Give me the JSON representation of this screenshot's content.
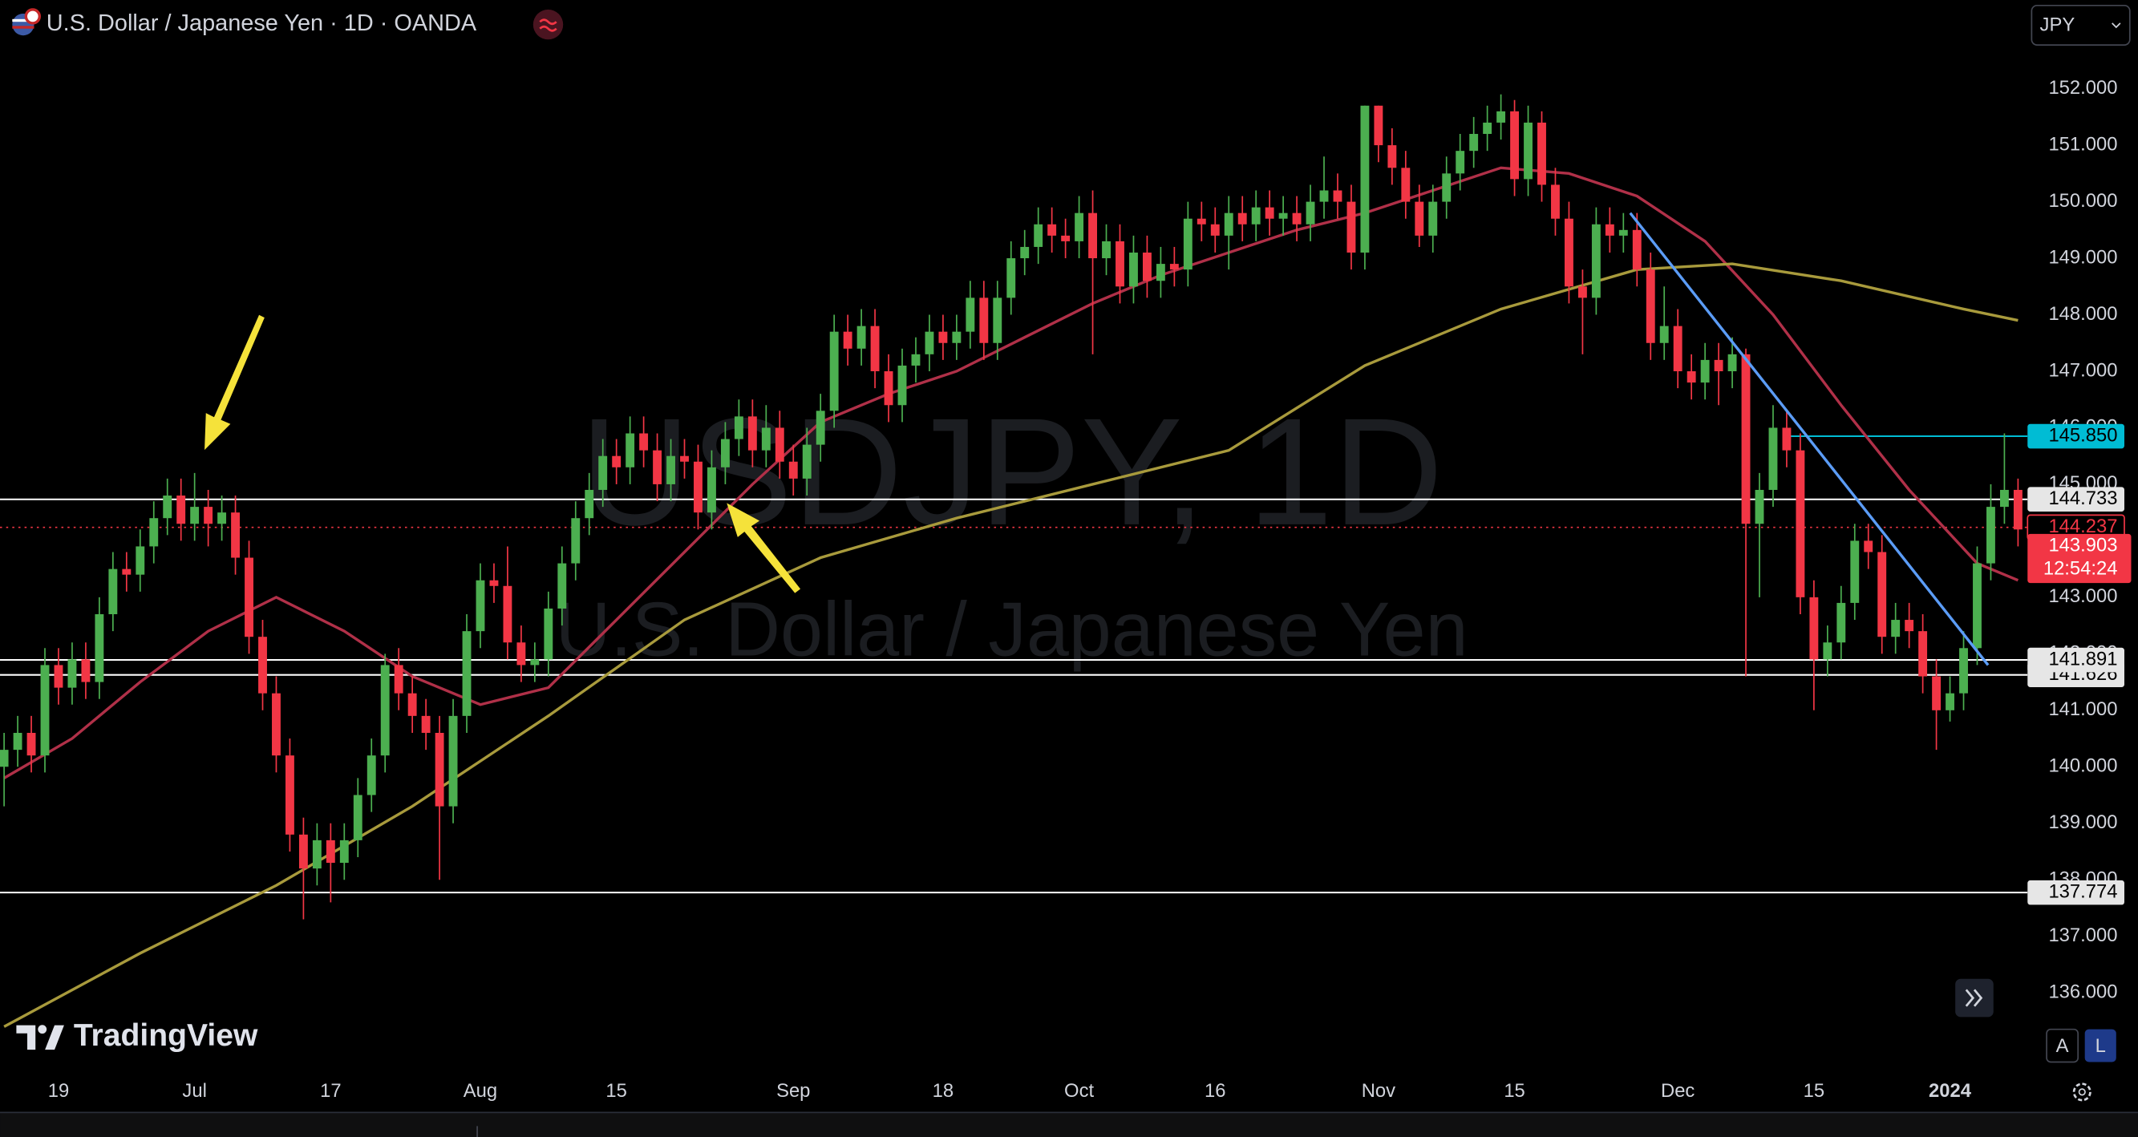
{
  "chart_data": {
    "type": "candlestick",
    "title": "U.S. Dollar / Japanese Yen · 1D · OANDA",
    "watermark_symbol": "USDJPY, 1D",
    "watermark_name": "U.S. Dollar / Japanese Yen",
    "up_color": "#4caf50",
    "down_color": "#f23645",
    "grid": false,
    "xlim": [
      -0.3,
      148.7
    ],
    "ylim": [
      134.63,
      153.57
    ],
    "yticks": [
      {
        "value": 136,
        "label": "136.000"
      },
      {
        "value": 137,
        "label": "137.000"
      },
      {
        "value": 138,
        "label": "138.000"
      },
      {
        "value": 139,
        "label": "139.000"
      },
      {
        "value": 140,
        "label": "140.000"
      },
      {
        "value": 141,
        "label": "141.000"
      },
      {
        "value": 142,
        "label": "142.000"
      },
      {
        "value": 143,
        "label": "143.000"
      },
      {
        "value": 144,
        "label": "144.000"
      },
      {
        "value": 145,
        "label": "145.000"
      },
      {
        "value": 146,
        "label": "146.000"
      },
      {
        "value": 147,
        "label": "147.000"
      },
      {
        "value": 148,
        "label": "148.000"
      },
      {
        "value": 149,
        "label": "149.000"
      },
      {
        "value": 150,
        "label": "150.000"
      },
      {
        "value": 151,
        "label": "151.000"
      },
      {
        "value": 152,
        "label": "152.000"
      }
    ],
    "categories": [
      null,
      null,
      null,
      null,
      "19",
      null,
      null,
      null,
      null,
      null,
      null,
      null,
      null,
      null,
      "Jul",
      null,
      null,
      null,
      null,
      null,
      null,
      null,
      null,
      null,
      "17",
      null,
      null,
      null,
      null,
      null,
      null,
      null,
      null,
      null,
      null,
      "Aug",
      null,
      null,
      null,
      null,
      null,
      null,
      null,
      null,
      null,
      "15",
      null,
      null,
      null,
      null,
      null,
      null,
      null,
      null,
      null,
      null,
      null,
      null,
      "Sep",
      null,
      null,
      null,
      null,
      null,
      null,
      null,
      null,
      null,
      null,
      "18",
      null,
      null,
      null,
      null,
      null,
      null,
      null,
      null,
      null,
      "Oct",
      null,
      null,
      null,
      null,
      null,
      null,
      null,
      null,
      null,
      "16",
      null,
      null,
      null,
      null,
      null,
      null,
      null,
      null,
      null,
      null,
      null,
      "Nov",
      null,
      null,
      null,
      null,
      null,
      null,
      null,
      null,
      null,
      "15",
      null,
      null,
      null,
      null,
      null,
      null,
      null,
      null,
      null,
      null,
      null,
      "Dec",
      null,
      null,
      null,
      null,
      null,
      null,
      null,
      null,
      null,
      "15",
      null,
      null,
      null,
      null,
      null,
      null,
      null,
      null,
      null,
      "2024",
      null,
      null,
      null,
      null,
      null
    ],
    "open": [
      140.0,
      140.3,
      140.6,
      140.2,
      141.8,
      141.4,
      141.9,
      141.5,
      142.7,
      143.5,
      143.4,
      143.9,
      144.4,
      144.8,
      144.3,
      144.6,
      144.3,
      144.5,
      143.7,
      142.3,
      141.3,
      140.2,
      138.8,
      138.2,
      138.7,
      138.3,
      138.7,
      139.5,
      140.2,
      141.8,
      141.3,
      140.9,
      140.6,
      139.3,
      140.9,
      142.4,
      143.3,
      143.2,
      142.2,
      141.8,
      141.9,
      142.8,
      143.6,
      144.4,
      144.9,
      145.5,
      145.3,
      145.9,
      145.6,
      145.0,
      145.5,
      145.4,
      144.5,
      145.3,
      145.8,
      146.2,
      145.6,
      146.0,
      145.4,
      145.1,
      145.7,
      146.3,
      147.7,
      147.4,
      147.8,
      147.0,
      146.4,
      147.1,
      147.3,
      147.7,
      147.5,
      147.7,
      148.3,
      147.5,
      148.3,
      149.0,
      149.2,
      149.6,
      149.4,
      149.3,
      149.8,
      149.0,
      149.3,
      148.5,
      149.1,
      148.6,
      148.9,
      148.8,
      149.7,
      149.6,
      149.4,
      149.8,
      149.6,
      149.9,
      149.7,
      149.8,
      149.6,
      150.0,
      150.2,
      150.0,
      149.1,
      151.7,
      151.0,
      150.6,
      150.0,
      149.4,
      150.0,
      150.5,
      150.9,
      151.2,
      151.4,
      151.6,
      150.4,
      151.4,
      150.3,
      149.7,
      148.5,
      148.3,
      149.6,
      149.4,
      149.5,
      148.8,
      147.5,
      147.8,
      147.0,
      146.8,
      147.2,
      147.0,
      147.3,
      144.3,
      144.9,
      146.0,
      145.6,
      143.0,
      141.9,
      142.2,
      142.9,
      144.0,
      143.8,
      142.3,
      142.6,
      142.4,
      141.6,
      141.0,
      141.3,
      142.1,
      143.6,
      144.6,
      144.9
    ],
    "high": [
      140.6,
      140.9,
      140.9,
      142.1,
      142.1,
      142.2,
      142.2,
      143.0,
      143.8,
      143.8,
      144.2,
      144.7,
      145.1,
      145.1,
      145.2,
      144.9,
      144.8,
      144.8,
      144.0,
      142.6,
      141.6,
      140.5,
      139.1,
      139.0,
      139.0,
      139.0,
      139.8,
      140.5,
      142.0,
      142.1,
      141.6,
      141.2,
      140.9,
      141.2,
      142.7,
      143.6,
      143.6,
      143.9,
      142.5,
      142.2,
      143.1,
      143.9,
      144.7,
      145.2,
      145.8,
      145.8,
      146.2,
      146.2,
      145.9,
      145.8,
      145.8,
      145.7,
      145.6,
      146.1,
      146.5,
      146.5,
      146.4,
      146.3,
      145.7,
      146.0,
      146.6,
      148.0,
      148.0,
      148.1,
      148.1,
      147.3,
      147.4,
      147.6,
      148.0,
      148.0,
      148.0,
      148.6,
      148.6,
      148.6,
      149.3,
      149.5,
      149.9,
      149.9,
      149.7,
      150.1,
      150.2,
      149.6,
      149.6,
      149.4,
      149.4,
      149.2,
      149.2,
      150.0,
      150.0,
      149.9,
      150.1,
      150.1,
      150.2,
      150.2,
      150.1,
      150.1,
      150.3,
      150.8,
      150.5,
      150.3,
      151.7,
      151.7,
      151.3,
      150.9,
      150.3,
      150.3,
      150.8,
      151.2,
      151.5,
      151.7,
      151.9,
      151.8,
      151.7,
      151.6,
      150.6,
      150.0,
      148.8,
      149.9,
      149.9,
      149.8,
      149.8,
      149.1,
      148.5,
      148.1,
      147.3,
      147.5,
      147.5,
      147.6,
      147.4,
      145.2,
      146.4,
      146.3,
      145.9,
      143.3,
      142.5,
      143.2,
      144.3,
      144.3,
      144.1,
      142.9,
      142.9,
      142.7,
      141.9,
      141.6,
      142.4,
      143.9,
      145.0,
      145.9,
      145.1
    ],
    "low": [
      139.3,
      140.0,
      139.9,
      139.9,
      141.1,
      141.1,
      141.2,
      141.2,
      142.4,
      143.1,
      143.1,
      143.6,
      144.1,
      144.0,
      144.0,
      143.9,
      144.0,
      143.4,
      142.0,
      141.0,
      139.9,
      138.5,
      137.3,
      137.9,
      137.6,
      138.0,
      138.4,
      139.2,
      139.9,
      141.0,
      140.6,
      140.3,
      138.0,
      139.0,
      140.6,
      142.1,
      142.9,
      141.9,
      141.5,
      141.5,
      141.6,
      142.5,
      143.3,
      144.1,
      144.6,
      145.0,
      145.0,
      145.3,
      144.7,
      144.7,
      145.1,
      144.2,
      144.2,
      145.0,
      145.5,
      145.3,
      145.3,
      145.1,
      144.8,
      144.8,
      145.4,
      146.0,
      147.1,
      147.1,
      146.7,
      146.1,
      146.1,
      146.8,
      147.0,
      147.2,
      147.2,
      147.4,
      147.2,
      147.2,
      148.0,
      148.7,
      148.9,
      149.1,
      149.0,
      149.0,
      147.3,
      148.7,
      148.2,
      148.2,
      148.3,
      148.3,
      148.5,
      148.5,
      149.3,
      149.1,
      148.8,
      149.3,
      149.3,
      149.4,
      149.4,
      149.3,
      149.3,
      149.7,
      149.7,
      148.8,
      148.8,
      150.7,
      150.3,
      149.7,
      149.2,
      149.1,
      149.7,
      150.2,
      150.6,
      150.9,
      151.1,
      150.1,
      150.1,
      150.0,
      149.4,
      148.2,
      147.3,
      148.0,
      149.1,
      149.1,
      148.5,
      147.2,
      147.2,
      146.7,
      146.5,
      146.5,
      146.4,
      146.7,
      141.6,
      143.0,
      144.6,
      145.3,
      142.7,
      141.0,
      141.6,
      141.9,
      142.6,
      143.5,
      142.0,
      142.0,
      142.1,
      141.3,
      140.3,
      140.8,
      141.0,
      141.8,
      143.3,
      144.3,
      143.9
    ],
    "close": [
      140.3,
      140.6,
      140.2,
      141.8,
      141.4,
      141.9,
      141.5,
      142.7,
      143.5,
      143.4,
      143.9,
      144.4,
      144.8,
      144.3,
      144.6,
      144.3,
      144.5,
      143.7,
      142.3,
      141.3,
      140.2,
      138.8,
      138.2,
      138.7,
      138.3,
      138.7,
      139.5,
      140.2,
      141.8,
      141.3,
      140.9,
      140.6,
      139.3,
      140.9,
      142.4,
      143.3,
      143.2,
      142.2,
      141.8,
      141.9,
      142.8,
      143.6,
      144.4,
      144.9,
      145.5,
      145.3,
      145.9,
      145.6,
      145.0,
      145.5,
      145.4,
      144.5,
      145.3,
      145.8,
      146.2,
      145.6,
      146.0,
      145.4,
      145.1,
      145.7,
      146.3,
      147.7,
      147.4,
      147.8,
      147.0,
      146.4,
      147.1,
      147.3,
      147.7,
      147.5,
      147.7,
      148.3,
      147.5,
      148.3,
      149.0,
      149.2,
      149.6,
      149.4,
      149.3,
      149.8,
      149.0,
      149.3,
      148.5,
      149.1,
      148.6,
      148.9,
      148.8,
      149.7,
      149.6,
      149.4,
      149.8,
      149.6,
      149.9,
      149.7,
      149.8,
      149.6,
      150.0,
      150.2,
      150.0,
      149.1,
      151.7,
      151.0,
      150.6,
      150.0,
      149.4,
      150.0,
      150.5,
      150.9,
      151.2,
      151.4,
      151.6,
      150.4,
      151.4,
      150.3,
      149.7,
      148.5,
      148.3,
      149.6,
      149.4,
      149.5,
      148.8,
      147.5,
      147.8,
      147.0,
      146.8,
      147.2,
      147.0,
      147.3,
      144.3,
      144.9,
      146.0,
      145.6,
      143.0,
      141.9,
      142.2,
      142.9,
      144.0,
      143.8,
      142.3,
      142.6,
      142.4,
      141.6,
      141.0,
      141.3,
      142.1,
      143.6,
      144.6,
      144.9,
      144.2
    ],
    "ma": [
      {
        "color": "#b03048",
        "x": [
          0,
          5,
          10,
          15,
          20,
          25,
          30,
          35,
          40,
          45,
          50,
          55,
          60,
          65,
          70,
          75,
          80,
          85,
          90,
          95,
          100,
          105,
          110,
          115,
          120,
          125,
          130,
          135,
          140,
          145,
          148
        ],
        "values": [
          139.8,
          140.5,
          141.5,
          142.4,
          143.0,
          142.4,
          141.6,
          141.1,
          141.4,
          142.6,
          143.8,
          145.0,
          146.1,
          146.6,
          147.0,
          147.6,
          148.2,
          148.7,
          149.1,
          149.5,
          149.8,
          150.2,
          150.6,
          150.5,
          150.1,
          149.3,
          148.0,
          146.4,
          144.9,
          143.6,
          143.3
        ]
      },
      {
        "color": "#a89a3c",
        "x": [
          0,
          10,
          20,
          30,
          40,
          50,
          60,
          70,
          80,
          90,
          100,
          110,
          120,
          127,
          135,
          144,
          148
        ],
        "values": [
          135.4,
          136.7,
          137.9,
          139.3,
          140.9,
          142.6,
          143.7,
          144.4,
          145.0,
          145.6,
          147.1,
          148.1,
          148.8,
          148.9,
          148.6,
          148.1,
          147.9
        ]
      }
    ],
    "trendline": {
      "color": "#5b9cf6",
      "x": [
        119.5,
        145.8
      ],
      "values": [
        149.8,
        141.8
      ]
    },
    "levels": [
      144.733,
      141.626,
      141.891,
      137.774
    ],
    "level_color": "#ffffff",
    "resistance": {
      "value": 145.85,
      "label": "145.850",
      "from": 131,
      "color": "#00bcd4"
    },
    "last_price": 144.237,
    "close_label": 143.903,
    "countdown": "12:54:24",
    "price_color": "#f23645"
  },
  "ui": {
    "currency": "JPY",
    "logo": "TradingView",
    "scale_auto": "A",
    "scale_log": "L"
  }
}
